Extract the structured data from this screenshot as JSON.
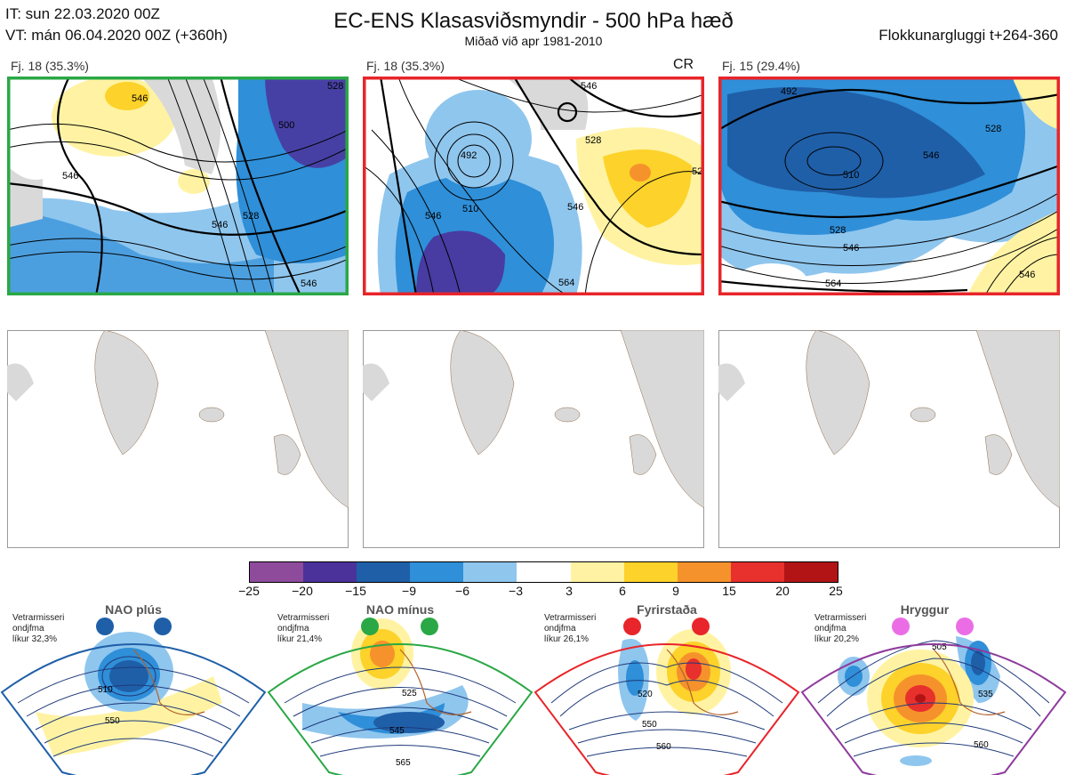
{
  "header": {
    "it": "IT: sun 22.03.2020 00Z",
    "vt": "VT: mán 06.04.2020 00Z  (+360h)",
    "title": "EC-ENS Klasasviðsmyndir - 500 hPa hæð",
    "subtitle": "Miðað við apr 1981-2010",
    "window": "Flokkunargluggi t+264-360"
  },
  "clusters": [
    {
      "label": "Fj. 18 (35.3%)",
      "border": "#2aa846",
      "tag": "",
      "contours": [
        "546",
        "528",
        "546",
        "546",
        "528",
        "546",
        "500"
      ]
    },
    {
      "label": "Fj. 18 (35.3%)",
      "border": "#e8252a",
      "tag": "CR",
      "contours": [
        "546",
        "528",
        "510",
        "546",
        "528",
        "492",
        "546",
        "564"
      ]
    },
    {
      "label": "Fj. 15 (29.4%)",
      "border": "#e8252a",
      "tag": "",
      "contours": [
        "492",
        "510",
        "528",
        "546",
        "564",
        "528",
        "546",
        "546"
      ]
    }
  ],
  "colorbar": {
    "colors": [
      "#8e4b9c",
      "#4b329b",
      "#1f5fa8",
      "#2f8fd8",
      "#8fc6ee",
      "#ffffff",
      "#fff3a3",
      "#fdd22a",
      "#f6922c",
      "#e8302c",
      "#b21416"
    ],
    "labels": [
      "−25",
      "−20",
      "−15",
      "−9",
      "−6",
      "−3",
      "3",
      "6",
      "9",
      "15",
      "20",
      "25"
    ]
  },
  "regimes": [
    {
      "name": "NAO plús",
      "line1": "Vetrarmisseri",
      "line2": "ondjfma",
      "line3": "líkur 32,3%",
      "color": "#1f5fa8",
      "dot": "#1f5fa8",
      "contours": [
        "510",
        "550"
      ]
    },
    {
      "name": "NAO mínus",
      "line1": "Vetrarmisseri",
      "line2": "ondjfma",
      "line3": "líkur 21,4%",
      "color": "#2aa846",
      "dot": "#2aa846",
      "contours": [
        "525",
        "545",
        "565"
      ]
    },
    {
      "name": "Fyrirstaða",
      "line1": "Vetrarmisseri",
      "line2": "ondjfma",
      "line3": "líkur 26,1%",
      "color": "#e8252a",
      "dot": "#e8252a",
      "contours": [
        "520",
        "550",
        "560"
      ]
    },
    {
      "name": "Hryggur",
      "line1": "Vetrarmisseri",
      "line2": "ondjfma",
      "line3": "líkur 20,2%",
      "color": "#8e3b9c",
      "dot": "#ea6de6",
      "contours": [
        "505",
        "535",
        "560"
      ]
    }
  ]
}
